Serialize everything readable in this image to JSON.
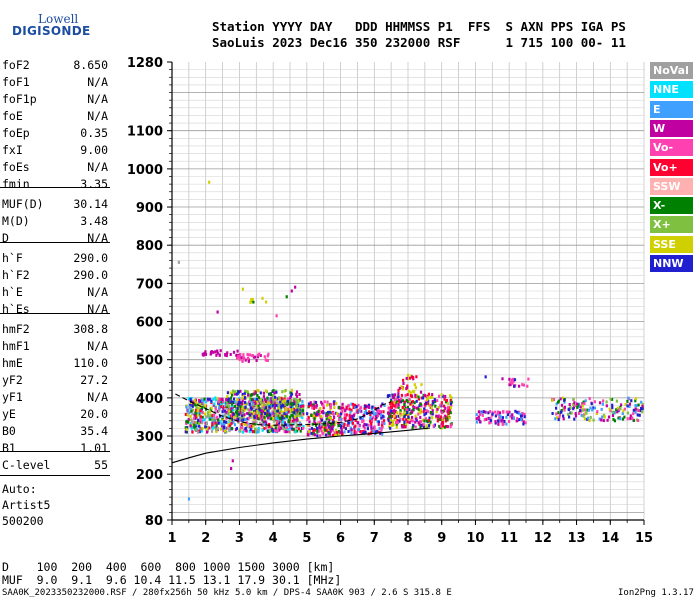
{
  "logo": {
    "line1": "Lowell",
    "line2": "DIGISONDE"
  },
  "header": {
    "line1": "Station YYYY DAY   DDD HHMMSS P1  FFS  S AXN PPS IGA PS",
    "line2": "SaoLuis 2023 Dec16 350 232000 RSF      1 715 100 00- 11"
  },
  "params": [
    {
      "label": "foF2",
      "value": "8.650"
    },
    {
      "label": "foF1",
      "value": "N/A"
    },
    {
      "label": "foF1p",
      "value": "N/A"
    },
    {
      "label": "foE",
      "value": "N/A"
    },
    {
      "label": "foEp",
      "value": "0.35"
    },
    {
      "label": "fxI",
      "value": "9.00"
    },
    {
      "label": "foEs",
      "value": "N/A"
    },
    {
      "label": "fmin",
      "value": "3.35"
    },
    {
      "label": "MUF(D)",
      "value": "30.14"
    },
    {
      "label": "M(D)",
      "value": "3.48"
    },
    {
      "label": "D",
      "value": "N/A"
    },
    {
      "label": "h`F",
      "value": "290.0"
    },
    {
      "label": "h`F2",
      "value": "290.0"
    },
    {
      "label": "h`E",
      "value": "N/A"
    },
    {
      "label": "h`Es",
      "value": "N/A"
    },
    {
      "label": "hmF2",
      "value": "308.8"
    },
    {
      "label": "hmF1",
      "value": "N/A"
    },
    {
      "label": "hmE",
      "value": "110.0"
    },
    {
      "label": "yF2",
      "value": "27.2"
    },
    {
      "label": "yF1",
      "value": "N/A"
    },
    {
      "label": "yE",
      "value": "20.0"
    },
    {
      "label": "B0",
      "value": "35.4"
    },
    {
      "label": "B1",
      "value": "1.01"
    },
    {
      "label": "C-level",
      "value": "55"
    }
  ],
  "auto": [
    "Auto:",
    "Artist5",
    "500200"
  ],
  "legend": [
    {
      "label": "NoVal",
      "color": "#a0a0a0"
    },
    {
      "label": "NNE",
      "color": "#00e0ff"
    },
    {
      "label": "E",
      "color": "#40a0ff"
    },
    {
      "label": "W",
      "color": "#c000a0"
    },
    {
      "label": "Vo-",
      "color": "#ff40b0"
    },
    {
      "label": "Vo+",
      "color": "#ff0030"
    },
    {
      "label": "SSW",
      "color": "#ffb0b0"
    },
    {
      "label": "X-",
      "color": "#008000"
    },
    {
      "label": "X+",
      "color": "#80c040"
    },
    {
      "label": "SSE",
      "color": "#d0d000"
    },
    {
      "label": "NNW",
      "color": "#2020d0"
    }
  ],
  "bottom": {
    "d_line": "D    100  200  400  600  800 1000 1500 3000 [km]",
    "muf_line": "MUF  9.0  9.1  9.6 10.4 11.5 13.1 17.9 30.1 [MHz]"
  },
  "footer": {
    "left": "SAA0K_2023350232000.RSF / 280fx256h 50 kHz 5.0 km / DPS-4 SAA0K 903 / 2.6 S 315.8 E",
    "right": "Ion2Png 1.3.17"
  },
  "chart_data": {
    "type": "scatter",
    "title": "",
    "xlabel": "",
    "ylabel": "",
    "xlim": [
      1,
      15
    ],
    "ylim": [
      80,
      1280
    ],
    "x_ticks": [
      1,
      2,
      3,
      4,
      5,
      6,
      7,
      8,
      9,
      10,
      11,
      12,
      13,
      14,
      15
    ],
    "y_ticks": [
      80,
      200,
      300,
      400,
      500,
      600,
      700,
      800,
      900,
      1000,
      1100,
      1280
    ],
    "grid": true,
    "clusters": [
      {
        "x0": 1.4,
        "x1": 4.9,
        "y0": 310,
        "y1": 400,
        "n": 900,
        "colors": [
          "#c000a0",
          "#2020d0",
          "#ff0030",
          "#d0d000",
          "#008000",
          "#ff40b0",
          "#80c040",
          "#00e0ff",
          "#40a0ff",
          "#a0a0a0"
        ]
      },
      {
        "x0": 2.6,
        "x1": 4.8,
        "y0": 345,
        "y1": 420,
        "n": 250,
        "colors": [
          "#d0d000",
          "#008000",
          "#80c040",
          "#c000a0",
          "#2020d0"
        ]
      },
      {
        "x0": 5.0,
        "x1": 6.0,
        "y0": 300,
        "y1": 390,
        "n": 200,
        "colors": [
          "#c000a0",
          "#2020d0",
          "#ff0030",
          "#d0d000",
          "#008000",
          "#ff40b0"
        ]
      },
      {
        "x0": 6.0,
        "x1": 7.3,
        "y0": 305,
        "y1": 385,
        "n": 200,
        "colors": [
          "#c000a0",
          "#2020d0",
          "#ff0030",
          "#ff40b0",
          "#40a0ff"
        ]
      },
      {
        "x0": 7.4,
        "x1": 9.3,
        "y0": 320,
        "y1": 410,
        "n": 350,
        "colors": [
          "#ff0030",
          "#ff40b0",
          "#c000a0",
          "#2020d0",
          "#d0d000",
          "#008000"
        ]
      },
      {
        "x0": 10.0,
        "x1": 11.5,
        "y0": 330,
        "y1": 365,
        "n": 90,
        "colors": [
          "#2020d0",
          "#c000a0",
          "#40a0ff",
          "#ff40b0"
        ]
      },
      {
        "x0": 11.0,
        "x1": 11.6,
        "y0": 430,
        "y1": 450,
        "n": 18,
        "colors": [
          "#c000a0",
          "#2020d0",
          "#ff40b0"
        ]
      },
      {
        "x0": 12.2,
        "x1": 15.0,
        "y0": 340,
        "y1": 400,
        "n": 180,
        "colors": [
          "#c000a0",
          "#ff40b0",
          "#2020d0",
          "#d0d000",
          "#008000",
          "#40a0ff",
          "#80c040"
        ]
      },
      {
        "x0": 1.9,
        "x1": 3.0,
        "y0": 510,
        "y1": 525,
        "n": 25,
        "colors": [
          "#c000a0"
        ]
      },
      {
        "x0": 2.9,
        "x1": 3.9,
        "y0": 495,
        "y1": 515,
        "n": 35,
        "colors": [
          "#c000a0",
          "#ff40b0"
        ]
      },
      {
        "x0": 3.2,
        "x1": 3.9,
        "y0": 650,
        "y1": 665,
        "n": 8,
        "colors": [
          "#d0d000",
          "#008000"
        ]
      },
      {
        "x0": 7.7,
        "x1": 8.4,
        "y0": 410,
        "y1": 460,
        "n": 30,
        "colors": [
          "#d0d000",
          "#ff0030",
          "#c000a0"
        ]
      }
    ],
    "outliers": [
      {
        "x": 1.2,
        "y": 755,
        "color": "#a0a0a0"
      },
      {
        "x": 2.1,
        "y": 965,
        "color": "#d0d000"
      },
      {
        "x": 2.35,
        "y": 625,
        "color": "#c000a0"
      },
      {
        "x": 1.5,
        "y": 135,
        "color": "#40a0ff"
      },
      {
        "x": 2.8,
        "y": 235,
        "color": "#c000a0"
      },
      {
        "x": 2.75,
        "y": 215,
        "color": "#c000a0"
      },
      {
        "x": 3.1,
        "y": 685,
        "color": "#d0d000"
      },
      {
        "x": 4.55,
        "y": 680,
        "color": "#c000a0"
      },
      {
        "x": 4.65,
        "y": 690,
        "color": "#c000a0"
      },
      {
        "x": 4.1,
        "y": 615,
        "color": "#ff40b0"
      },
      {
        "x": 4.4,
        "y": 665,
        "color": "#008000"
      },
      {
        "x": 10.3,
        "y": 455,
        "color": "#2020d0"
      },
      {
        "x": 10.8,
        "y": 450,
        "color": "#c000a0"
      }
    ],
    "profile": [
      [
        1.0,
        230
      ],
      [
        1.5,
        243
      ],
      [
        2.0,
        255
      ],
      [
        3.0,
        270
      ],
      [
        4.0,
        282
      ],
      [
        5.0,
        292
      ],
      [
        6.0,
        300
      ],
      [
        7.0,
        307
      ],
      [
        8.0,
        315
      ],
      [
        8.65,
        321
      ]
    ],
    "trace": [
      [
        1.1,
        410
      ],
      [
        1.5,
        392
      ],
      [
        2.0,
        372
      ],
      [
        2.5,
        352
      ],
      [
        3.0,
        338
      ],
      [
        3.5,
        330
      ],
      [
        4.0,
        328
      ],
      [
        5.0,
        330
      ],
      [
        5.5,
        332
      ],
      [
        6.0,
        336
      ],
      [
        6.5,
        345
      ],
      [
        6.9,
        362
      ],
      [
        7.2,
        380
      ],
      [
        7.5,
        390
      ]
    ]
  }
}
